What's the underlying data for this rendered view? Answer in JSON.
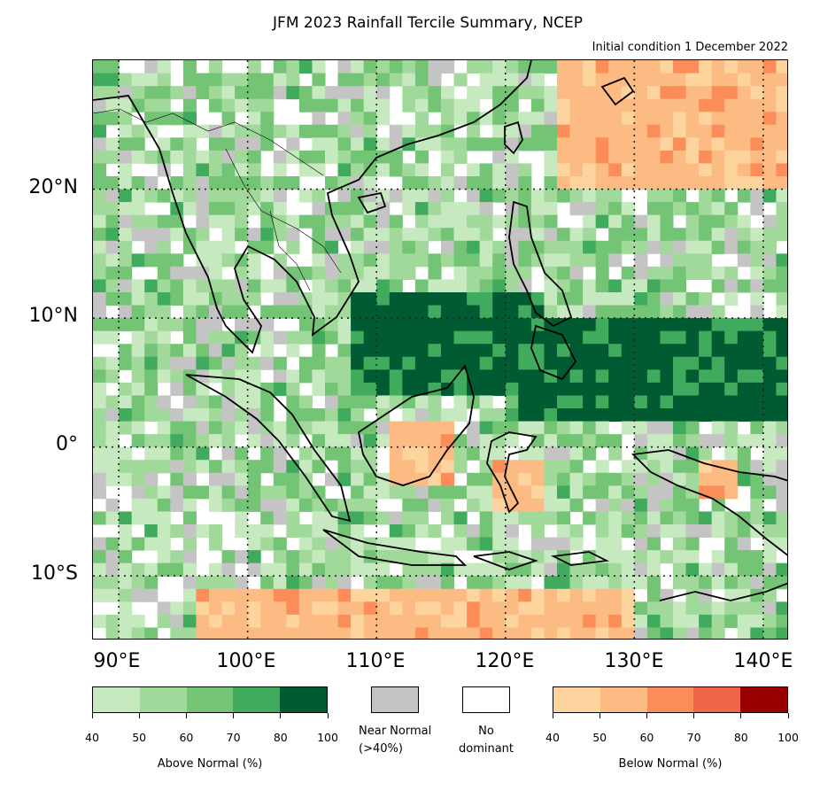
{
  "title": "JFM 2023 Rainfall Tercile Summary, NCEP",
  "subtitle": "Initial condition 1 December 2022",
  "axes": {
    "lon_labels": [
      "90°E",
      "100°E",
      "110°E",
      "120°E",
      "130°E",
      "140°E"
    ],
    "lat_labels": [
      "20°N",
      "10°N",
      "0°",
      "10°S"
    ],
    "lon_range": [
      88,
      142
    ],
    "lat_range": [
      -15,
      30
    ],
    "gridlines": "dotted"
  },
  "legend": {
    "above_label": "Above Normal (%)",
    "above_ticks": [
      "40",
      "50",
      "60",
      "70",
      "80",
      "100"
    ],
    "above_colors": [
      "#c7e9c0",
      "#a1d99b",
      "#74c476",
      "#41ab5d",
      "#005a32"
    ],
    "near_label_1": "Near Normal",
    "near_label_2": "(>40%)",
    "near_color": "#c4c4c4",
    "nodom_label_1": "No",
    "nodom_label_2": "dominant",
    "nodom_color": "#ffffff",
    "below_label": "Below Normal (%)",
    "below_ticks": [
      "40",
      "50",
      "60",
      "70",
      "80",
      "100"
    ],
    "below_colors": [
      "#fdd49e",
      "#fdbb84",
      "#fc8d59",
      "#ef6548",
      "#990000"
    ]
  },
  "regions": [
    {
      "name": "central-above-80",
      "category": "above",
      "level": 5,
      "lon": [
        108.5,
        123
      ],
      "lat": [
        4,
        12
      ]
    },
    {
      "name": "east-above-80",
      "category": "above",
      "level": 5,
      "lon": [
        121,
        142
      ],
      "lat": [
        2.5,
        10
      ]
    },
    {
      "name": "sulawesi-below",
      "category": "below",
      "level": 2,
      "lon": [
        119,
        122.5
      ],
      "lat": [
        -5,
        -1
      ]
    },
    {
      "name": "borneo-below",
      "category": "below",
      "level": 2,
      "lon": [
        111,
        116
      ],
      "lat": [
        -2.5,
        1.5
      ]
    },
    {
      "name": "southern-below",
      "category": "below",
      "level": 2,
      "lon": [
        96,
        130
      ],
      "lat": [
        -15,
        -11.5
      ]
    },
    {
      "name": "northeast-below",
      "category": "below",
      "level": 2,
      "lon": [
        124,
        142
      ],
      "lat": [
        20,
        30
      ]
    },
    {
      "name": "newguinea-below",
      "category": "below",
      "level": 2,
      "lon": [
        135,
        138
      ],
      "lat": [
        -4,
        -1.5
      ]
    }
  ]
}
